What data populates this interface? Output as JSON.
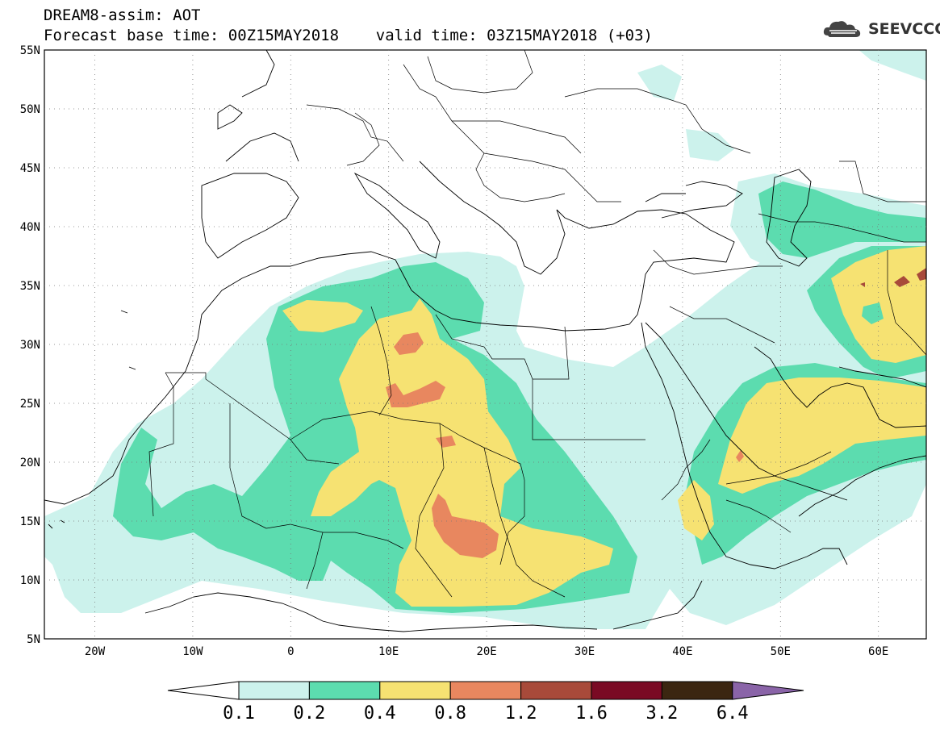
{
  "header": {
    "title": "DREAM8-assim: AOT",
    "subtitle": "Forecast base time: 00Z15MAY2018    valid time: 03Z15MAY2018 (+03)"
  },
  "logo": {
    "text": "SEEVCCC",
    "icon": "cloud-logo-icon"
  },
  "map": {
    "lon_range": [
      -25,
      65
    ],
    "lat_range": [
      5,
      55
    ],
    "lat_labels": [
      "55N",
      "50N",
      "45N",
      "40N",
      "35N",
      "30N",
      "25N",
      "20N",
      "15N",
      "10N",
      "5N"
    ],
    "lon_labels": [
      "20W",
      "10W",
      "0",
      "10E",
      "20E",
      "30E",
      "40E",
      "50E",
      "60E"
    ],
    "grid": "dotted"
  },
  "colorbar": {
    "labels": [
      "0.1",
      "0.2",
      "0.4",
      "0.8",
      "1.2",
      "1.6",
      "3.2",
      "6.4"
    ],
    "colors": {
      "c1": "#ccf2ec",
      "c2": "#5cdcaf",
      "c3": "#f6e272",
      "c4": "#e8875f",
      "c5": "#a84a3a",
      "c6": "#7a0a24",
      "c7": "#3b2611",
      "c8": "#8a64a8"
    }
  }
}
